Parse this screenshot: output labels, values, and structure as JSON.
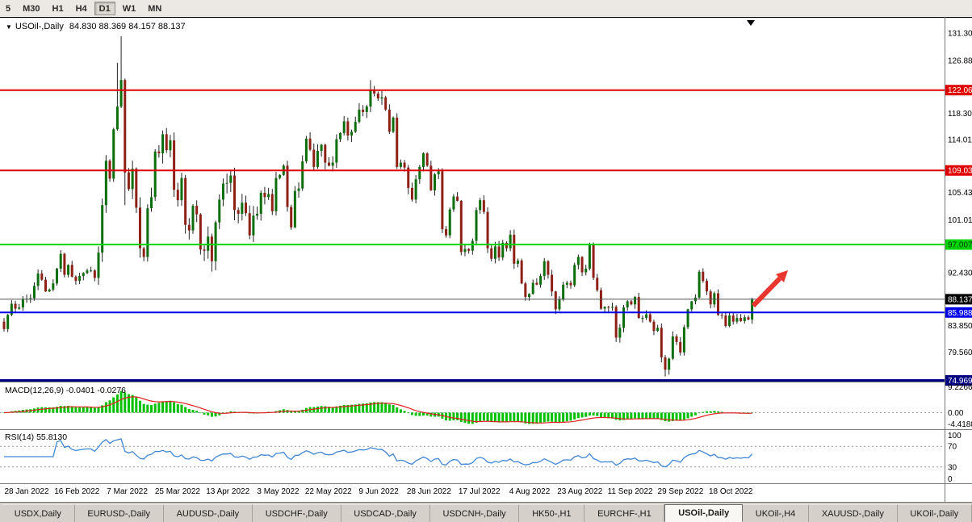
{
  "toolbar": {
    "timeframes": [
      "5",
      "M30",
      "H1",
      "H4",
      "D1",
      "W1",
      "MN"
    ],
    "active": "D1"
  },
  "chart_header": {
    "dropdown_icon": "▼",
    "symbol": "USOil-,Daily",
    "ohlc_text": "84.830 88.369 84.157 88.137",
    "open": "84.830",
    "high": "88.369",
    "low": "84.157",
    "close": "88.137"
  },
  "chart_data": {
    "type": "candlestick",
    "symbol": "USOil-,Daily",
    "timeframe": "Daily",
    "y_range": [
      74.9,
      133.8
    ],
    "first_open": 84.5,
    "closes": [
      83.3,
      85.6,
      87.4,
      86.6,
      86.8,
      88.2,
      88.2,
      88.3,
      90.3,
      92.3,
      91.3,
      89.4,
      89.7,
      90.7,
      93.1,
      95.5,
      92.1,
      93.7,
      91.8,
      91.1,
      91.9,
      92.4,
      92.8,
      92.8,
      91.6,
      95.7,
      103.4,
      110.6,
      107.7,
      115.7,
      119.4,
      123.7,
      108.7,
      106.0,
      109.3,
      103.0,
      96.4,
      95.0,
      102.9,
      104.7,
      112.1,
      111.8,
      114.9,
      112.3,
      113.9,
      105.9,
      104.2,
      107.8,
      100.2,
      99.3,
      103.3,
      101.9,
      96.2,
      96.0,
      98.3,
      94.3,
      100.6,
      104.3,
      106.9,
      107.0,
      108.2,
      102.6,
      102.0,
      103.8,
      102.1,
      98.5,
      101.7,
      102.0,
      105.4,
      104.7,
      105.2,
      102.4,
      107.8,
      108.3,
      109.8,
      103.1,
      99.8,
      105.7,
      106.1,
      110.5,
      114.2,
      112.4,
      109.6,
      112.2,
      113.2,
      110.3,
      109.8,
      110.3,
      114.1,
      115.1,
      117.0,
      114.7,
      115.3,
      116.9,
      118.9,
      118.5,
      119.4,
      122.1,
      121.5,
      120.7,
      120.9,
      118.9,
      115.3,
      117.6,
      109.6,
      110.3,
      109.5,
      106.2,
      104.3,
      107.6,
      109.6,
      111.8,
      109.8,
      105.8,
      108.4,
      108.9,
      99.5,
      98.5,
      102.7,
      104.8,
      104.1,
      95.8,
      96.3,
      96.0,
      97.6,
      102.6,
      104.2,
      102.3,
      96.4,
      94.7,
      96.7,
      94.9,
      97.3,
      96.4,
      98.6,
      93.9,
      94.4,
      90.7,
      88.5,
      89.0,
      90.8,
      90.5,
      91.9,
      94.3,
      92.1,
      89.4,
      86.5,
      88.1,
      90.5,
      90.8,
      90.4,
      93.7,
      95.0,
      92.5,
      93.1,
      97.0,
      91.6,
      89.6,
      86.6,
      86.9,
      86.8,
      86.9,
      81.9,
      83.5,
      86.8,
      87.8,
      87.3,
      88.5,
      85.1,
      85.1,
      85.7,
      84.5,
      83.0,
      83.5,
      78.7,
      76.7,
      78.5,
      82.1,
      81.2,
      79.5,
      83.6,
      86.5,
      87.8,
      88.4,
      92.6,
      91.1,
      89.4,
      87.3,
      89.1,
      85.6,
      85.5,
      83.8,
      85.5,
      84.5,
      85.1,
      84.6,
      85.2,
      84.83,
      88.137
    ],
    "wick_overrides": {
      "30": {
        "h": 126.5
      },
      "31": {
        "h": 130.8
      },
      "32": {
        "l": 103.4
      },
      "97": {
        "h": 123.68
      },
      "162": {
        "l": 81.2
      },
      "175": {
        "l": 75.6
      },
      "198": {
        "h": 88.369,
        "l": 84.157
      }
    },
    "candle_colors": {
      "up": "#0b6e0b",
      "down": "#8f2016",
      "wick": "#222222"
    },
    "x_tick_labels": [
      "28 Jan 2022",
      "16 Feb 2022",
      "7 Mar 2022",
      "25 Mar 2022",
      "13 Apr 2022",
      "3 May 2022",
      "22 May 2022",
      "9 Jun 2022",
      "28 Jun 2022",
      "17 Jul 2022",
      "4 Aug 2022",
      "23 Aug 2022",
      "11 Sep 2022",
      "29 Sep 2022",
      "18 Oct 2022"
    ],
    "y_tick_labels": [
      {
        "text": "131.30",
        "price": 131.3
      },
      {
        "text": "126.88",
        "price": 126.88
      },
      {
        "text": "118.30",
        "price": 118.3
      },
      {
        "text": "114.01",
        "price": 114.01
      },
      {
        "text": "105.43",
        "price": 105.43
      },
      {
        "text": "101.01",
        "price": 101.01
      },
      {
        "text": "92.430",
        "price": 92.43
      },
      {
        "text": "83.850",
        "price": 83.85
      },
      {
        "text": "79.560",
        "price": 79.56
      }
    ],
    "levels": [
      {
        "text": "122.06",
        "price": 122.06,
        "line_color": "#e00000",
        "line_width": 2,
        "tag_bg": "#e00000",
        "tag_fg": "#ffffff",
        "role": "resistance"
      },
      {
        "text": "109.03",
        "price": 109.03,
        "line_color": "#e00000",
        "line_width": 2,
        "tag_bg": "#e00000",
        "tag_fg": "#ffffff",
        "role": "resistance"
      },
      {
        "text": "97.007",
        "price": 97.007,
        "line_color": "#00d400",
        "line_width": 2,
        "tag_bg": "#00d400",
        "tag_fg": "#003300",
        "role": "resistance"
      },
      {
        "text": "88.137",
        "price": 88.137,
        "line_color": "#555555",
        "line_width": 1,
        "tag_bg": "#000000",
        "tag_fg": "#ffffff",
        "role": "current-price"
      },
      {
        "text": "85.988",
        "price": 85.988,
        "line_color": "#0000e8",
        "line_width": 2,
        "tag_bg": "#0000e8",
        "tag_fg": "#ffffff",
        "role": "support"
      },
      {
        "text": "74.969",
        "price": 74.969,
        "line_color": "#000080",
        "line_width": 3,
        "tag_bg": "#000080",
        "tag_fg": "#ffffff",
        "role": "support"
      }
    ],
    "indicators": {
      "macd": {
        "label": "MACD(12,26,9) -0.0401 -0.0276",
        "params": [
          12,
          26,
          9
        ],
        "values_text": [
          "-0.0401",
          "-0.0276"
        ],
        "scale_labels": [
          "9.2266",
          "0.00",
          "-4.4188"
        ],
        "range": [
          -4.4188,
          9.2266
        ],
        "histogram_color": "#00c000",
        "signal_color": "#e02020"
      },
      "rsi": {
        "label": "RSI(14) 55.8130",
        "period": 14,
        "value_text": "55.8130",
        "line_color": "#3f86d6",
        "levels": [
          {
            "text": "100",
            "v": 100,
            "dashed": false
          },
          {
            "text": "70",
            "v": 70,
            "dashed": true
          },
          {
            "text": "30",
            "v": 30,
            "dashed": true
          },
          {
            "text": "0",
            "v": 0,
            "dashed": false
          }
        ]
      }
    },
    "annotations": [
      {
        "type": "arrow",
        "color": "#e8352e",
        "direction": "up-right"
      }
    ]
  },
  "tabs": {
    "items": [
      "USDX,Daily",
      "EURUSD-,Daily",
      "AUDUSD-,Daily",
      "USDCHF-,Daily",
      "USDCAD-,Daily",
      "USDCNH-,Daily",
      "HK50-,H1",
      "EURCHF-,H1",
      "USOil-,Daily",
      "UKOil-,H4",
      "XAUUSD-,Daily",
      "UKOil-,Daily"
    ],
    "active": "USOil-,Daily"
  }
}
